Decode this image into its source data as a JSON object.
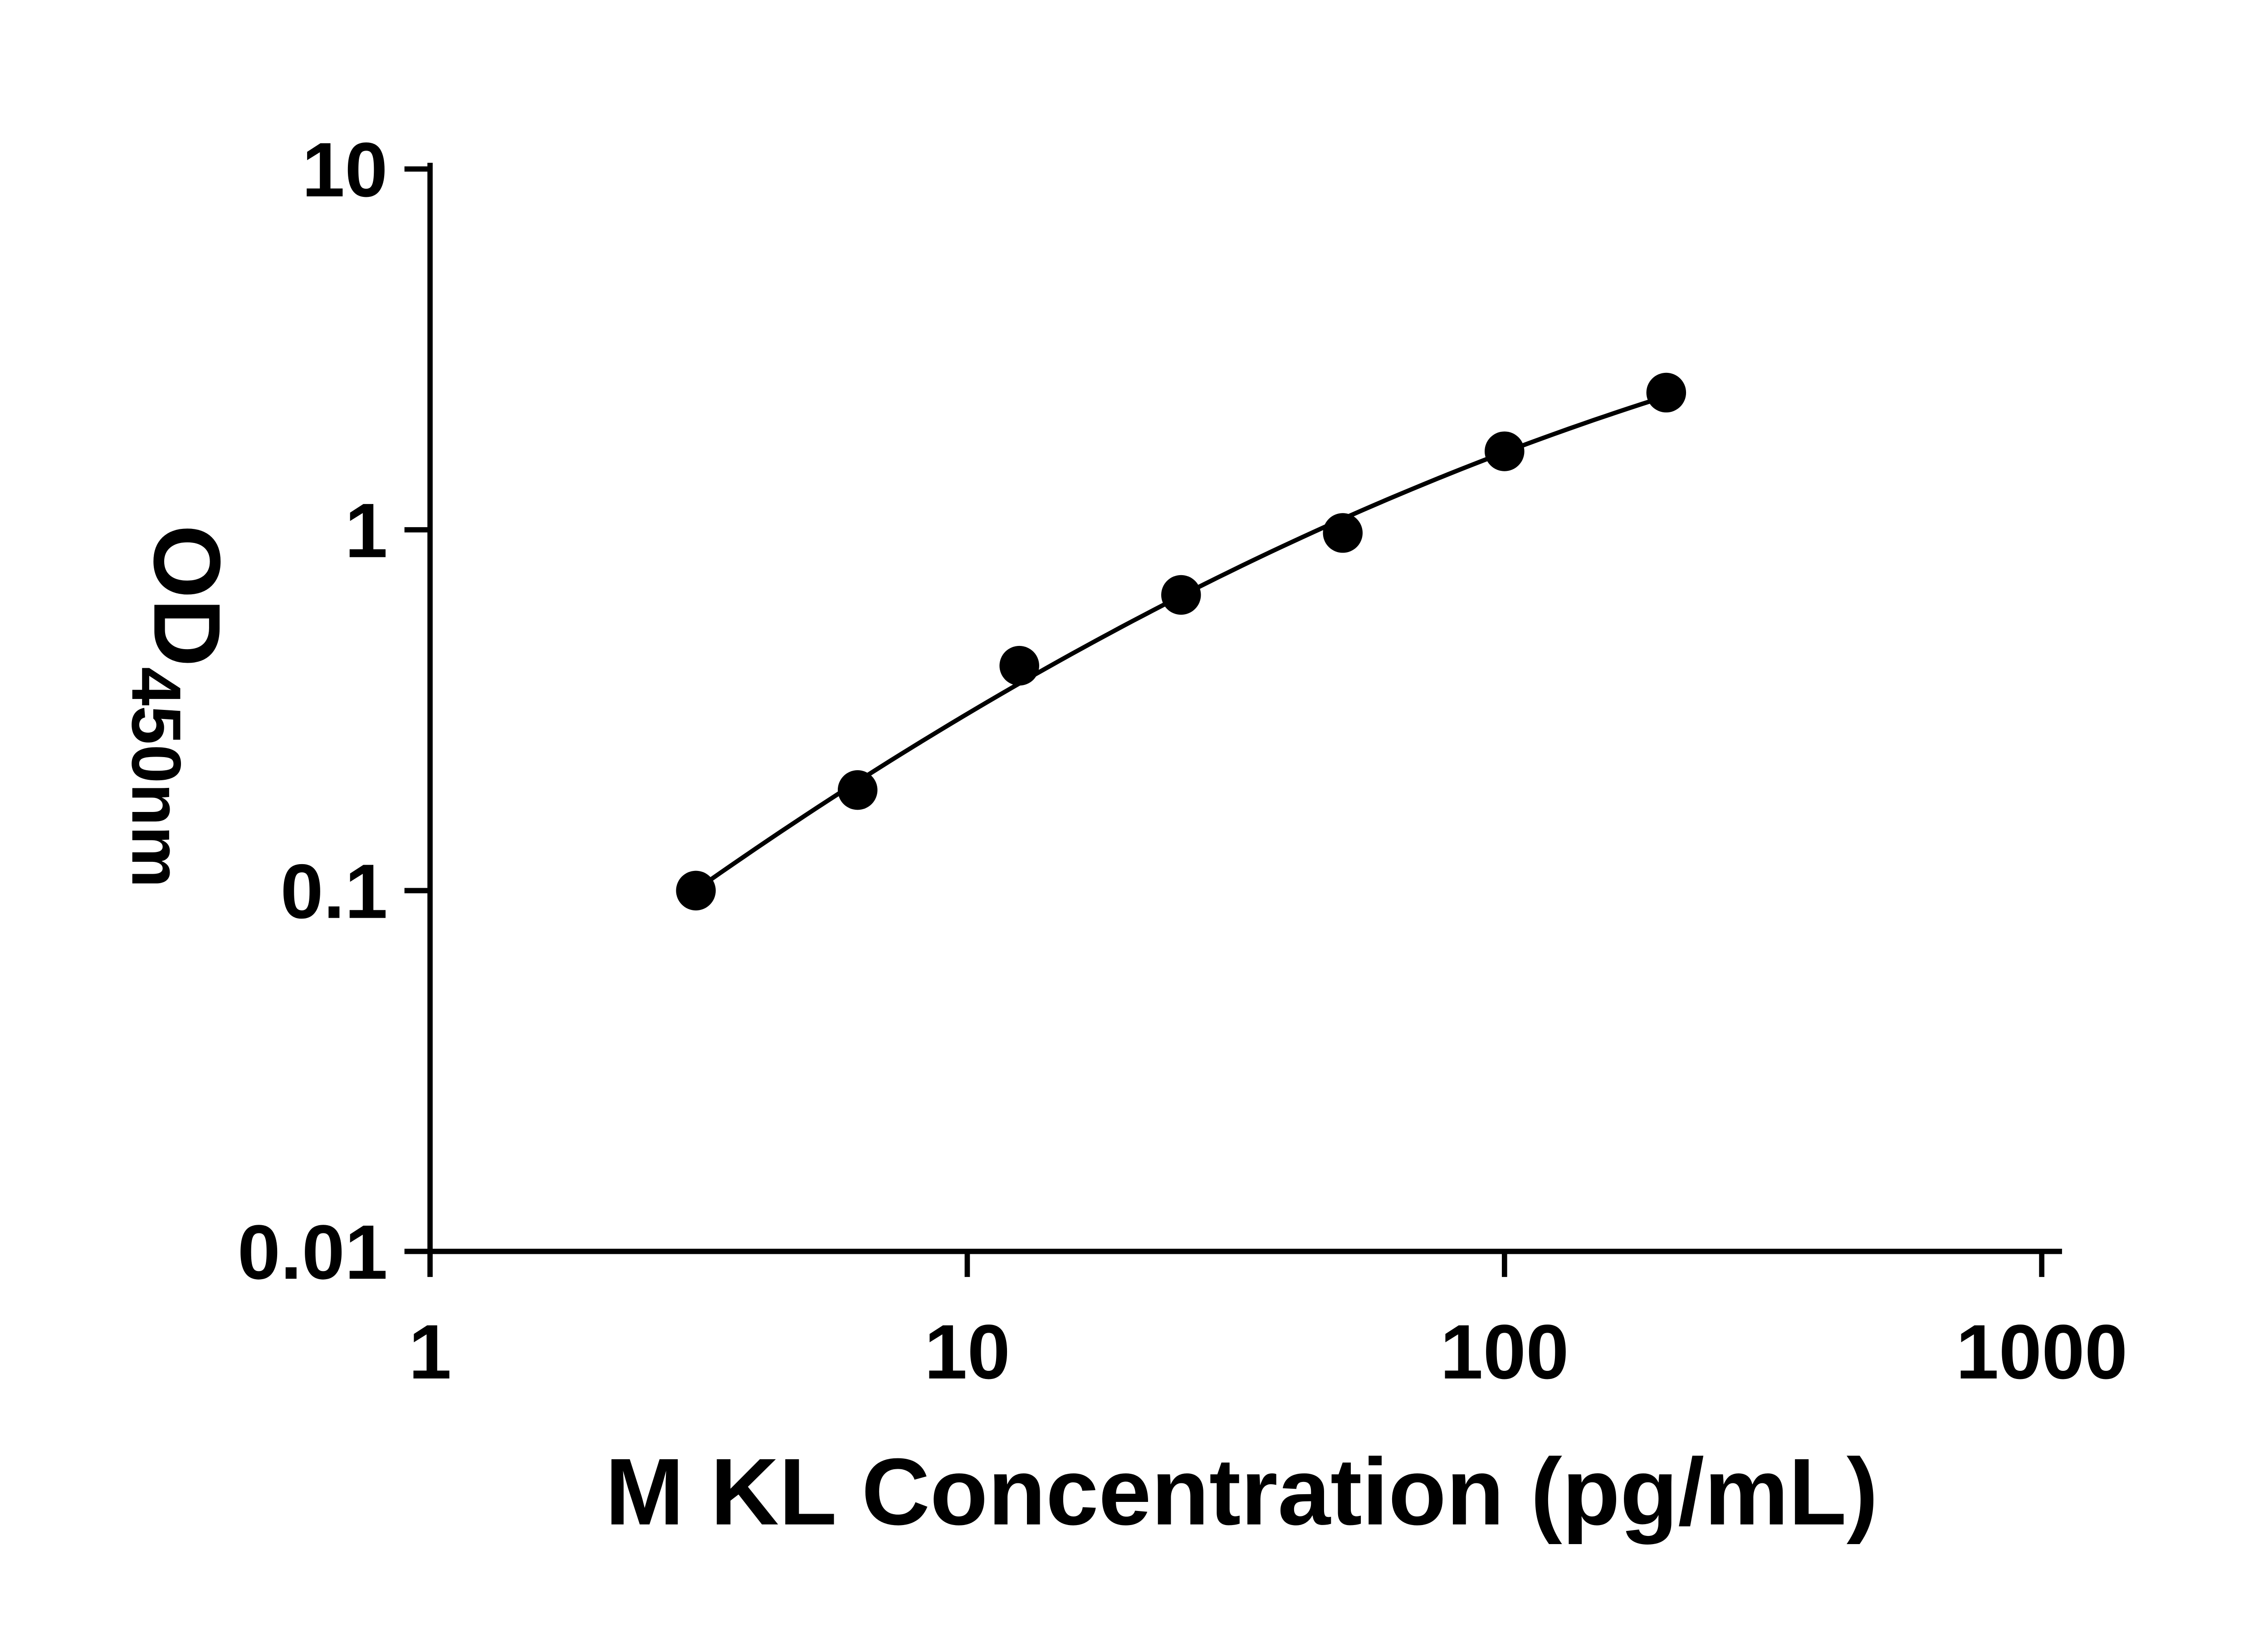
{
  "page": {
    "background": "#ffffff"
  },
  "style": {
    "axis_color": "#000000",
    "marker_color": "#000000",
    "curve_color": "#000000"
  },
  "chart_data": {
    "type": "scatter",
    "title": "",
    "xlabel": "M KL Concentration (pg/mL)",
    "ylabel_base": "OD",
    "ylabel_sub": "450nm",
    "x_scale": "log10",
    "y_scale": "log10",
    "xlim": [
      1,
      1000
    ],
    "ylim": [
      0.01,
      10
    ],
    "x_ticks": [
      1,
      10,
      100,
      1000
    ],
    "x_tick_labels": [
      "1",
      "10",
      "100",
      "1000"
    ],
    "y_ticks": [
      0.01,
      0.1,
      1,
      10
    ],
    "y_tick_labels": [
      "0.01",
      "0.1",
      "1",
      "10"
    ],
    "grid": false,
    "legend": false,
    "series": [
      {
        "name": "standard-curve",
        "marker": "filled-circle",
        "fit": "quadratic-loglog",
        "x": [
          3.125,
          6.25,
          12.5,
          25,
          50,
          100,
          200
        ],
        "y": [
          0.1,
          0.19,
          0.42,
          0.66,
          0.98,
          1.65,
          2.4
        ]
      }
    ]
  }
}
